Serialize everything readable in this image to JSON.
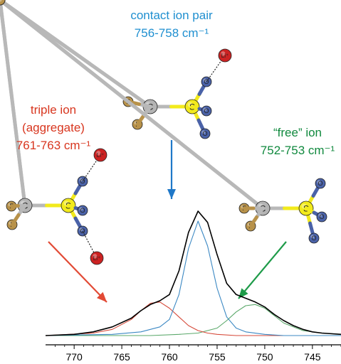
{
  "chart_data": {
    "type": "line",
    "xlim": [
      773,
      742
    ],
    "ylim": [
      0,
      1
    ],
    "x_ticks": [
      770,
      765,
      760,
      755,
      750,
      745
    ],
    "grid": false,
    "legend": "none",
    "series": [
      {
        "color": "#000000",
        "x": [
          773,
          770,
          768,
          766,
          764,
          763,
          762,
          761,
          760,
          759,
          758,
          757,
          756,
          755,
          754,
          753,
          752,
          751,
          750,
          749,
          748,
          747,
          746,
          745,
          744,
          742
        ],
        "y": [
          0.0,
          0.01,
          0.03,
          0.07,
          0.14,
          0.2,
          0.25,
          0.28,
          0.33,
          0.52,
          0.83,
          1.0,
          0.91,
          0.65,
          0.42,
          0.33,
          0.3,
          0.27,
          0.23,
          0.17,
          0.12,
          0.08,
          0.05,
          0.03,
          0.02,
          0.01
        ]
      },
      {
        "color": "#3b88c3",
        "x": [
          773,
          766,
          763,
          761,
          760,
          759,
          758,
          757,
          756,
          755,
          754,
          753,
          752,
          750,
          748,
          745,
          742
        ],
        "y": [
          0.0,
          0.01,
          0.03,
          0.07,
          0.13,
          0.33,
          0.7,
          0.92,
          0.72,
          0.38,
          0.15,
          0.06,
          0.03,
          0.01,
          0.0,
          0.0,
          0.0
        ]
      },
      {
        "color": "#d64a3a",
        "x": [
          773,
          768,
          766,
          764,
          763,
          762,
          761,
          760,
          759,
          758,
          757,
          756,
          755,
          753,
          750,
          742
        ],
        "y": [
          0.0,
          0.02,
          0.05,
          0.13,
          0.2,
          0.26,
          0.27,
          0.22,
          0.15,
          0.08,
          0.04,
          0.02,
          0.01,
          0.0,
          0.0,
          0.0
        ]
      },
      {
        "color": "#5aa86a",
        "x": [
          773,
          762,
          759,
          757,
          755,
          754,
          753,
          752,
          751,
          750,
          749,
          748,
          746,
          744,
          742
        ],
        "y": [
          0.0,
          0.0,
          0.01,
          0.02,
          0.06,
          0.12,
          0.19,
          0.24,
          0.25,
          0.22,
          0.16,
          0.1,
          0.04,
          0.02,
          0.01
        ]
      }
    ],
    "annotations": [
      {
        "lines": [
          "contact ion pair",
          "756-758 cm⁻¹"
        ],
        "color": "#1f8fd0",
        "arrow_color": "#1f78c8"
      },
      {
        "lines": [
          "triple ion",
          "(aggregate)",
          "761-763 cm⁻¹"
        ],
        "color": "#d8361f",
        "arrow_color": "#e24a35"
      },
      {
        "lines": [
          "“free” ion",
          "752-753 cm⁻¹"
        ],
        "color": "#10893e",
        "arrow_color": "#1e9b49"
      }
    ]
  },
  "molecules": {
    "atom_labels": [
      "F",
      "F",
      "F",
      "C",
      "S",
      "O",
      "O",
      "O",
      "Li⁺"
    ],
    "atom_colors": {
      "F": "#b8924a",
      "C": "#b4b4b4",
      "S": "#f2ea1c",
      "O": "#4a62a8",
      "Li": "#cc2222",
      "bond": "#b8b8b8"
    }
  }
}
